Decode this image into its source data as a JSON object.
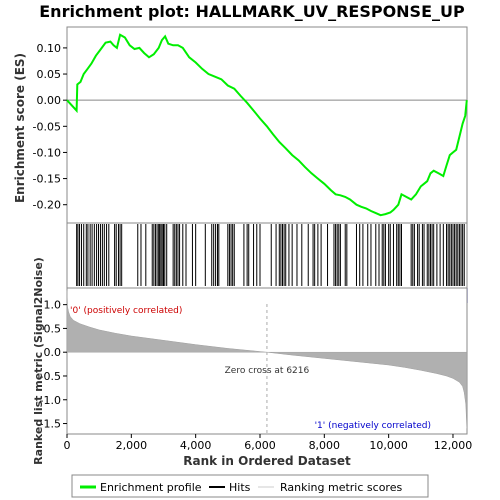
{
  "chart_data": {
    "type": "line",
    "title": "Enrichment plot: HALLMARK_UV_RESPONSE_UP",
    "es_panel": {
      "ylabel": "Enrichment score (ES)",
      "ylim": [
        -0.235,
        0.14
      ],
      "yticks": [
        0.1,
        0.05,
        0.0,
        -0.05,
        -0.1,
        -0.15,
        -0.2
      ],
      "ytick_labels": [
        "0.10",
        "0.05",
        "0.00",
        "-0.05",
        "-0.10",
        "-0.15",
        "-0.20"
      ],
      "series": [
        {
          "name": "Enrichment profile",
          "color": "#00ee00",
          "x": [
            0,
            300,
            320,
            420,
            520,
            640,
            760,
            900,
            1020,
            1200,
            1350,
            1450,
            1550,
            1650,
            1800,
            1950,
            2100,
            2250,
            2400,
            2550,
            2700,
            2850,
            2950,
            3050,
            3150,
            3300,
            3450,
            3600,
            3800,
            4000,
            4200,
            4400,
            4600,
            4800,
            5000,
            5200,
            5400,
            5600,
            5800,
            6000,
            6216,
            6400,
            6600,
            6800,
            7000,
            7200,
            7400,
            7600,
            7800,
            8000,
            8200,
            8350,
            8500,
            8650,
            8800,
            9000,
            9150,
            9300,
            9450,
            9600,
            9750,
            9900,
            10050,
            10150,
            10300,
            10400,
            10550,
            10700,
            10850,
            11000,
            11100,
            11200,
            11300,
            11400,
            11550,
            11700,
            11800,
            11900,
            12000,
            12100,
            12200,
            12300,
            12380,
            12430
          ],
          "values": [
            0.0,
            -0.02,
            0.03,
            0.035,
            0.05,
            0.06,
            0.07,
            0.085,
            0.095,
            0.11,
            0.112,
            0.105,
            0.1,
            0.125,
            0.12,
            0.105,
            0.098,
            0.1,
            0.09,
            0.082,
            0.088,
            0.1,
            0.115,
            0.122,
            0.108,
            0.105,
            0.105,
            0.1,
            0.082,
            0.072,
            0.06,
            0.05,
            0.045,
            0.04,
            0.028,
            0.022,
            0.008,
            -0.005,
            -0.02,
            -0.035,
            -0.05,
            -0.065,
            -0.08,
            -0.092,
            -0.105,
            -0.115,
            -0.128,
            -0.14,
            -0.15,
            -0.16,
            -0.172,
            -0.18,
            -0.182,
            -0.185,
            -0.19,
            -0.2,
            -0.204,
            -0.207,
            -0.212,
            -0.216,
            -0.22,
            -0.218,
            -0.215,
            -0.21,
            -0.2,
            -0.18,
            -0.185,
            -0.19,
            -0.18,
            -0.165,
            -0.16,
            -0.155,
            -0.14,
            -0.135,
            -0.14,
            -0.145,
            -0.125,
            -0.105,
            -0.1,
            -0.095,
            -0.07,
            -0.045,
            -0.03,
            0.0
          ]
        }
      ]
    },
    "hits_panel": {
      "legend_name": "Hits",
      "hit_ranks": [
        300,
        340,
        390,
        450,
        520,
        600,
        650,
        720,
        780,
        850,
        920,
        980,
        1040,
        1100,
        1160,
        1230,
        1300,
        1480,
        1530,
        1600,
        1650,
        1700,
        2200,
        2300,
        2450,
        2650,
        2700,
        2750,
        2800,
        2850,
        2880,
        2920,
        2960,
        3000,
        3040,
        3100,
        3300,
        3350,
        3400,
        3450,
        3500,
        3600,
        3700,
        3900,
        4000,
        4300,
        4500,
        4560,
        4620,
        4680,
        4720,
        5000,
        5050,
        5100,
        5150,
        5200,
        5500,
        5600,
        5650,
        5800,
        5900,
        6000,
        6350,
        6500,
        6600,
        6650,
        6700,
        6750,
        6800,
        6900,
        7000,
        7150,
        7300,
        7500,
        7650,
        7700,
        7800,
        7900,
        8100,
        8300,
        8350,
        8400,
        8450,
        8500,
        8650,
        8700,
        9000,
        9100,
        9200,
        9350,
        9450,
        9600,
        9700,
        9800,
        9850,
        9900,
        10000,
        10050,
        10150,
        10250,
        10300,
        10350,
        10400,
        10700,
        10750,
        10800,
        10900,
        10950,
        11050,
        11100,
        11200,
        11250,
        11300,
        11350,
        11400,
        11500,
        11600,
        11700,
        11800,
        11850,
        11900,
        11950,
        12000,
        12050,
        12100,
        12150,
        12200,
        12250,
        12300,
        12350
      ]
    },
    "metric_panel": {
      "legend_name": "Ranking metric scores",
      "ylabel": "Ranked list metric (Signal2Noise)",
      "ylim": [
        -1.72,
        1.35
      ],
      "yticks": [
        1.0,
        0.5,
        0.0,
        -0.5,
        -1.0,
        -1.5
      ],
      "ytick_labels": [
        "1.0",
        "0.5",
        "0.0",
        "-0.5",
        "-1.0",
        "-1.5"
      ],
      "x": [
        0,
        20,
        50,
        100,
        200,
        400,
        700,
        1000,
        1500,
        2000,
        3000,
        4000,
        5000,
        6216,
        7000,
        8000,
        9000,
        10000,
        10500,
        11000,
        11500,
        11800,
        12000,
        12200,
        12300,
        12350,
        12400,
        12430
      ],
      "values": [
        1.3,
        0.95,
        0.85,
        0.75,
        0.67,
        0.6,
        0.53,
        0.47,
        0.4,
        0.34,
        0.25,
        0.16,
        0.08,
        0.0,
        -0.06,
        -0.13,
        -0.2,
        -0.27,
        -0.32,
        -0.38,
        -0.45,
        -0.5,
        -0.55,
        -0.63,
        -0.72,
        -0.85,
        -1.1,
        -1.6
      ],
      "zero_cross_label": "Zero cross at 6216",
      "zero_cross": 6216,
      "positive_label": "'0' (positively correlated)",
      "negative_label": "'1' (negatively correlated)",
      "positive_color": "#cc0000",
      "negative_color": "#0000cc"
    },
    "x_axis": {
      "xlabel": "Rank in Ordered Dataset",
      "xlim": [
        0,
        12436
      ],
      "xticks": [
        0,
        2000,
        4000,
        6000,
        8000,
        10000,
        12000
      ],
      "xtick_labels": [
        "0",
        "2,000",
        "4,000",
        "6,000",
        "8,000",
        "10,000",
        "12,000"
      ]
    },
    "legend": {
      "items": [
        "Enrichment profile",
        "Hits",
        "Ranking metric scores"
      ]
    }
  }
}
